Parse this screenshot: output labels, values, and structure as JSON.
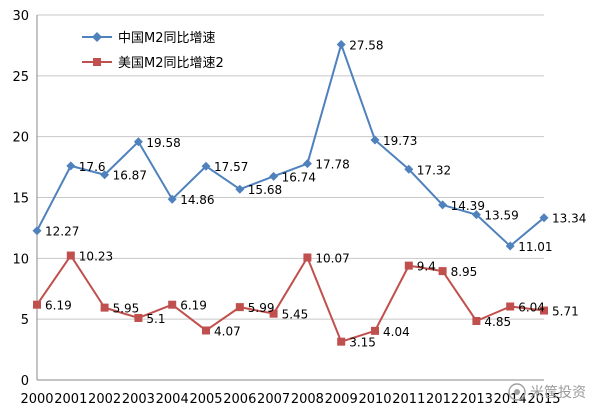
{
  "chart_data": {
    "type": "line",
    "categories": [
      "2000",
      "2001",
      "2002",
      "2003",
      "2004",
      "2005",
      "2006",
      "2007",
      "2008",
      "2009",
      "2010",
      "2011",
      "2012",
      "2013",
      "2014",
      "2015"
    ],
    "series": [
      {
        "name": "中国M2同比增速",
        "color": "#4f81bd",
        "marker": "diamond",
        "values": [
          12.27,
          17.6,
          16.87,
          19.58,
          14.86,
          17.57,
          15.68,
          16.74,
          17.78,
          27.58,
          19.73,
          17.32,
          14.39,
          13.59,
          11.01,
          13.34
        ],
        "labels": [
          "12.27",
          "17.6",
          "16.87",
          "19.58",
          "14.86",
          "17.57",
          "15.68",
          "16.74",
          "17.78",
          "27.58",
          "19.73",
          "17.32",
          "14.39",
          "13.59",
          "11.01",
          "13.34"
        ]
      },
      {
        "name": "美国M2同比增速2",
        "color": "#c0504d",
        "marker": "square",
        "values": [
          6.19,
          10.23,
          5.95,
          5.1,
          6.19,
          4.07,
          5.99,
          5.45,
          10.07,
          3.15,
          4.04,
          9.4,
          8.95,
          4.85,
          6.04,
          5.71
        ],
        "labels": [
          "6.19",
          "10.23",
          "5.95",
          "5.1",
          "6.19",
          "4.07",
          "5.99",
          "5.45",
          "10.07",
          "3.15",
          "4.04",
          "9.4",
          "8.95",
          "4.85",
          "6.04",
          "5.71"
        ]
      }
    ],
    "ylim": [
      0,
      30
    ],
    "yticks": [
      "0",
      "5",
      "10",
      "15",
      "20",
      "25",
      "30"
    ],
    "grid": true,
    "legend_position": "top-left",
    "gridline_color": "#c8c8c8"
  },
  "watermark": {
    "text": "米筐投资"
  }
}
